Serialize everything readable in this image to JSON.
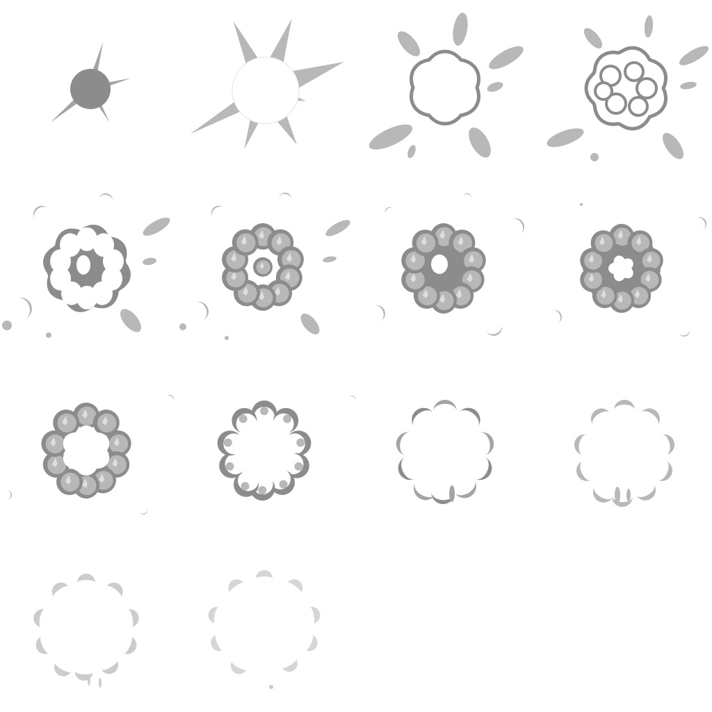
{
  "sprite_sheet": {
    "type": "explosion animation sprite sheet",
    "columns": 4,
    "rows": 4,
    "frame_count": 14,
    "colors": {
      "background": "#ffffff",
      "dark": "#8c8c8c",
      "mid": "#a4a4a4",
      "light": "#b8b8b8",
      "highlight": "#dedede",
      "white": "#ffffff"
    },
    "frames": [
      {
        "index": 1,
        "stage": "spark"
      },
      {
        "index": 2,
        "stage": "flash"
      },
      {
        "index": 3,
        "stage": "fireball-outline"
      },
      {
        "index": 4,
        "stage": "fireball-forming"
      },
      {
        "index": 5,
        "stage": "cloud-outline"
      },
      {
        "index": 6,
        "stage": "cloud-shaded"
      },
      {
        "index": 7,
        "stage": "cloud-full"
      },
      {
        "index": 8,
        "stage": "cloud-full"
      },
      {
        "index": 9,
        "stage": "cloud-breaking"
      },
      {
        "index": 10,
        "stage": "cloud-breaking"
      },
      {
        "index": 11,
        "stage": "cloud-fading"
      },
      {
        "index": 12,
        "stage": "cloud-fading"
      },
      {
        "index": 13,
        "stage": "wisps"
      },
      {
        "index": 14,
        "stage": "wisps"
      }
    ]
  }
}
